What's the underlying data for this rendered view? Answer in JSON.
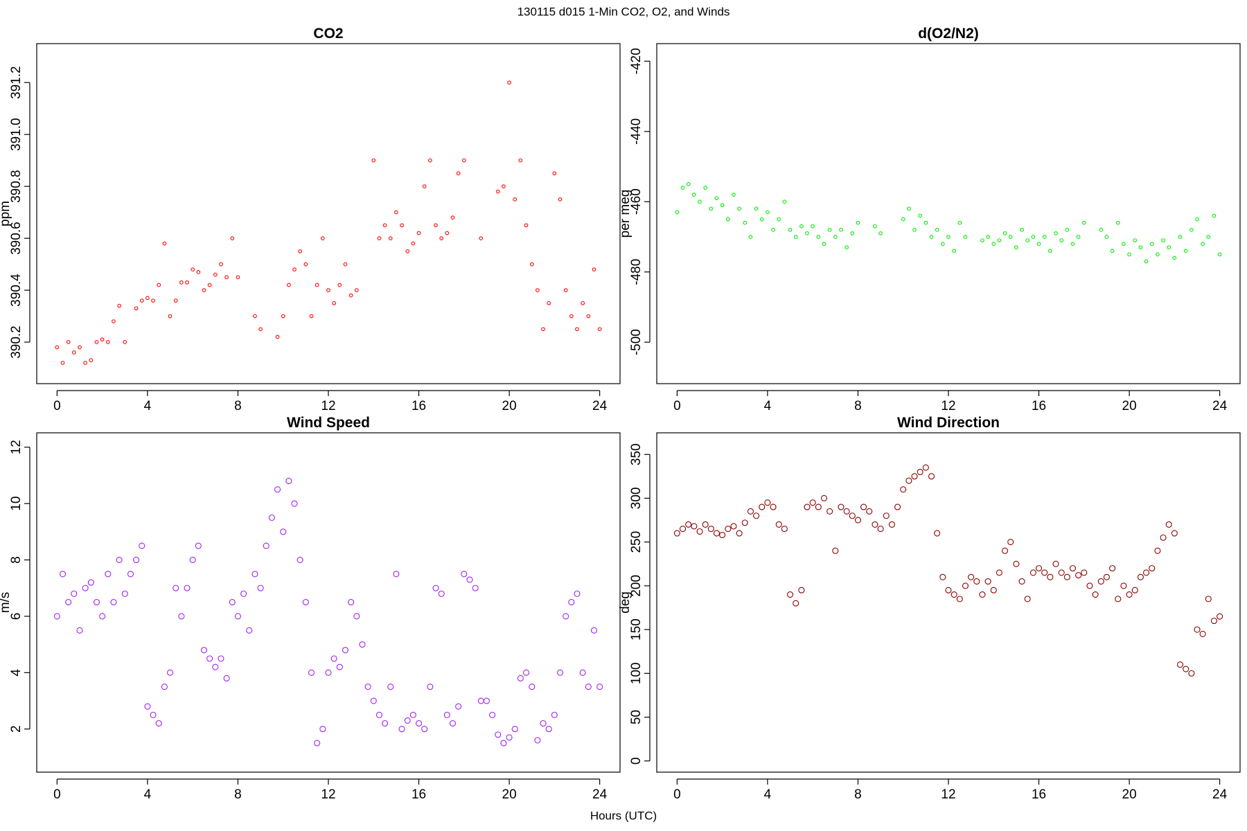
{
  "title": "130115   d015   1-Min CO2, O2, and Winds",
  "xlabel": "Hours (UTC)",
  "chart_data": [
    {
      "type": "scatter",
      "title": "CO2",
      "ylabel": "ppm",
      "color": "#ff0000",
      "xlim": [
        -0.9,
        24.9
      ],
      "xticks": [
        0,
        4,
        8,
        12,
        16,
        20,
        24
      ],
      "ylim": [
        390.04,
        391.35
      ],
      "yticks": [
        390.2,
        390.4,
        390.6,
        390.8,
        {
          "value": 391,
          "label": "391.0"
        },
        391.2
      ],
      "x": [
        0,
        0.25,
        0.5,
        0.75,
        1,
        1.25,
        1.5,
        1.75,
        2,
        2.25,
        2.5,
        2.75,
        3,
        3.25,
        3.5,
        3.75,
        4,
        4.25,
        4.5,
        4.75,
        5,
        5.25,
        5.5,
        5.75,
        6,
        6.25,
        6.5,
        6.75,
        7,
        7.25,
        7.5,
        7.75,
        8,
        8.25,
        8.5,
        8.75,
        9,
        9.25,
        9.5,
        9.75,
        10,
        10.25,
        10.5,
        10.75,
        11,
        11.25,
        11.5,
        11.75,
        12,
        12.25,
        12.5,
        12.75,
        13,
        13.25,
        13.5,
        13.75,
        14,
        14.25,
        14.5,
        14.75,
        15,
        15.25,
        15.5,
        15.75,
        16,
        16.25,
        16.5,
        16.75,
        17,
        17.25,
        17.5,
        17.75,
        18,
        18.25,
        18.5,
        18.75,
        19,
        19.25,
        19.5,
        19.75,
        20,
        20.25,
        20.5,
        20.75,
        21,
        21.25,
        21.5,
        21.75,
        22,
        22.25,
        22.5,
        22.75,
        23,
        23.25,
        23.5,
        23.75,
        24
      ],
      "values": [
        390.18,
        390.12,
        390.2,
        390.16,
        390.18,
        390.12,
        390.13,
        390.2,
        390.21,
        390.2,
        390.28,
        390.34,
        390.2,
        null,
        390.33,
        390.36,
        390.37,
        390.36,
        390.42,
        390.58,
        390.3,
        390.36,
        390.43,
        390.43,
        390.48,
        390.47,
        390.4,
        390.42,
        390.46,
        390.5,
        390.45,
        390.6,
        390.45,
        null,
        null,
        390.3,
        390.25,
        null,
        null,
        390.22,
        390.3,
        390.42,
        390.48,
        390.55,
        390.5,
        390.3,
        390.42,
        390.6,
        390.4,
        390.35,
        390.42,
        390.5,
        390.38,
        390.4,
        null,
        null,
        390.9,
        390.6,
        390.65,
        390.6,
        390.7,
        390.65,
        390.55,
        390.58,
        390.62,
        390.8,
        390.9,
        390.65,
        390.6,
        390.62,
        390.68,
        390.85,
        390.9,
        null,
        null,
        390.6,
        null,
        null,
        390.78,
        390.8,
        391.2,
        390.75,
        390.9,
        390.65,
        390.5,
        390.4,
        390.25,
        390.35,
        390.85,
        390.75,
        390.4,
        390.3,
        390.25,
        390.35,
        390.3,
        390.48,
        390.25
      ]
    },
    {
      "type": "scatter",
      "title": "d(O2/N2)",
      "ylabel": "per meg",
      "color": "#00ee00",
      "xlim": [
        -0.9,
        24.9
      ],
      "xticks": [
        0,
        4,
        8,
        12,
        16,
        20,
        24
      ],
      "ylim": [
        -511.8,
        -415
      ],
      "yticks": [
        -500,
        -480,
        -460,
        -440,
        -420
      ],
      "x": [
        0,
        0.25,
        0.5,
        0.75,
        1,
        1.25,
        1.5,
        1.75,
        2,
        2.25,
        2.5,
        2.75,
        3,
        3.25,
        3.5,
        3.75,
        4,
        4.25,
        4.5,
        4.75,
        5,
        5.25,
        5.5,
        5.75,
        6,
        6.25,
        6.5,
        6.75,
        7,
        7.25,
        7.5,
        7.75,
        8,
        8.25,
        8.5,
        8.75,
        9,
        9.25,
        9.5,
        9.75,
        10,
        10.25,
        10.5,
        10.75,
        11,
        11.25,
        11.5,
        11.75,
        12,
        12.25,
        12.5,
        12.75,
        13,
        13.25,
        13.5,
        13.75,
        14,
        14.25,
        14.5,
        14.75,
        15,
        15.25,
        15.5,
        15.75,
        16,
        16.25,
        16.5,
        16.75,
        17,
        17.25,
        17.5,
        17.75,
        18,
        18.25,
        18.5,
        18.75,
        19,
        19.25,
        19.5,
        19.75,
        20,
        20.25,
        20.5,
        20.75,
        21,
        21.25,
        21.5,
        21.75,
        22,
        22.25,
        22.5,
        22.75,
        23,
        23.25,
        23.5,
        23.75,
        24
      ],
      "values": [
        -463,
        -456,
        -455,
        -458,
        -460,
        -456,
        -462,
        -459,
        -461,
        -465,
        -458,
        -462,
        -466,
        -470,
        -462,
        -465,
        -463,
        -468,
        -465,
        -460,
        -468,
        -470,
        -467,
        -469,
        -467,
        -470,
        -472,
        -468,
        -470,
        -468,
        -473,
        -469,
        -466,
        null,
        null,
        -467,
        -469,
        null,
        null,
        null,
        -465,
        -462,
        -468,
        -464,
        -466,
        -470,
        -468,
        -472,
        -470,
        -474,
        -466,
        -470,
        null,
        null,
        -471,
        -470,
        -472,
        -471,
        -469,
        -470,
        -473,
        -468,
        -471,
        -470,
        -472,
        -470,
        -474,
        -469,
        -471,
        -468,
        -472,
        -470,
        -466,
        null,
        null,
        -468,
        -470,
        -474,
        -466,
        -472,
        -475,
        -471,
        -473,
        -477,
        -472,
        -475,
        -471,
        -473,
        -476,
        -470,
        -474,
        -468,
        -465,
        -472,
        -470,
        -464,
        -475
      ]
    },
    {
      "type": "scatter",
      "title": "Wind Speed",
      "ylabel": "m/s",
      "color": "#a020f0",
      "xlim": [
        -0.9,
        24.9
      ],
      "xticks": [
        0,
        4,
        8,
        12,
        16,
        20,
        24
      ],
      "ylim": [
        0.47,
        12.51
      ],
      "yticks": [
        2,
        4,
        6,
        8,
        10,
        12
      ],
      "x": [
        0,
        0.25,
        0.5,
        0.75,
        1,
        1.25,
        1.5,
        1.75,
        2,
        2.25,
        2.5,
        2.75,
        3,
        3.25,
        3.5,
        3.75,
        4,
        4.25,
        4.5,
        4.75,
        5,
        5.25,
        5.5,
        5.75,
        6,
        6.25,
        6.5,
        6.75,
        7,
        7.25,
        7.5,
        7.75,
        8,
        8.25,
        8.5,
        8.75,
        9,
        9.25,
        9.5,
        9.75,
        10,
        10.25,
        10.5,
        10.75,
        11,
        11.25,
        11.5,
        11.75,
        12,
        12.25,
        12.5,
        12.75,
        13,
        13.25,
        13.5,
        13.75,
        14,
        14.25,
        14.5,
        14.75,
        15,
        15.25,
        15.5,
        15.75,
        16,
        16.25,
        16.5,
        16.75,
        17,
        17.25,
        17.5,
        17.75,
        18,
        18.25,
        18.5,
        18.75,
        19,
        19.25,
        19.5,
        19.75,
        20,
        20.25,
        20.5,
        20.75,
        21,
        21.25,
        21.5,
        21.75,
        22,
        22.25,
        22.5,
        22.75,
        23,
        23.25,
        23.5,
        23.75,
        24
      ],
      "values": [
        6.0,
        7.5,
        6.5,
        6.8,
        5.5,
        7.0,
        7.2,
        6.5,
        6.0,
        7.5,
        6.5,
        8.0,
        6.8,
        7.5,
        8.0,
        8.5,
        2.8,
        2.5,
        2.2,
        3.5,
        4.0,
        7.0,
        6.0,
        7.0,
        8.0,
        8.5,
        4.8,
        4.5,
        4.2,
        4.5,
        3.8,
        6.5,
        6.0,
        6.8,
        5.5,
        7.5,
        7.0,
        8.5,
        9.5,
        10.5,
        9.0,
        10.8,
        10.0,
        8.0,
        6.5,
        4.0,
        1.5,
        2.0,
        4.0,
        4.5,
        4.2,
        4.8,
        6.5,
        6.0,
        5.0,
        3.5,
        3.0,
        2.5,
        2.2,
        3.5,
        7.5,
        2.0,
        2.3,
        2.5,
        2.2,
        2.0,
        3.5,
        7.0,
        6.8,
        2.5,
        2.2,
        2.8,
        7.5,
        7.3,
        7.0,
        3.0,
        3.0,
        2.5,
        1.8,
        1.5,
        1.7,
        2.0,
        3.8,
        4.0,
        3.5,
        1.6,
        2.2,
        2.0,
        2.5,
        4.0,
        6.0,
        6.5,
        6.8,
        4.0,
        3.5,
        5.5,
        3.5
      ]
    },
    {
      "type": "scatter",
      "title": "Wind Direction",
      "ylabel": "deg",
      "color": "#8b0000",
      "xlim": [
        -0.9,
        24.9
      ],
      "xticks": [
        0,
        4,
        8,
        12,
        16,
        20,
        24
      ],
      "ylim": [
        -12.8,
        374.7
      ],
      "yticks": [
        0,
        50,
        100,
        150,
        200,
        250,
        300,
        350
      ],
      "x": [
        0,
        0.25,
        0.5,
        0.75,
        1,
        1.25,
        1.5,
        1.75,
        2,
        2.25,
        2.5,
        2.75,
        3,
        3.25,
        3.5,
        3.75,
        4,
        4.25,
        4.5,
        4.75,
        5,
        5.25,
        5.5,
        5.75,
        6,
        6.25,
        6.5,
        6.75,
        7,
        7.25,
        7.5,
        7.75,
        8,
        8.25,
        8.5,
        8.75,
        9,
        9.25,
        9.5,
        9.75,
        10,
        10.25,
        10.5,
        10.75,
        11,
        11.25,
        11.5,
        11.75,
        12,
        12.25,
        12.5,
        12.75,
        13,
        13.25,
        13.5,
        13.75,
        14,
        14.25,
        14.5,
        14.75,
        15,
        15.25,
        15.5,
        15.75,
        16,
        16.25,
        16.5,
        16.75,
        17,
        17.25,
        17.5,
        17.75,
        18,
        18.25,
        18.5,
        18.75,
        19,
        19.25,
        19.5,
        19.75,
        20,
        20.25,
        20.5,
        20.75,
        21,
        21.25,
        21.5,
        21.75,
        22,
        22.25,
        22.5,
        22.75,
        23,
        23.25,
        23.5,
        23.75,
        24
      ],
      "values": [
        260,
        265,
        270,
        268,
        262,
        270,
        265,
        260,
        258,
        265,
        268,
        260,
        272,
        285,
        280,
        290,
        295,
        290,
        270,
        265,
        190,
        180,
        195,
        290,
        295,
        290,
        300,
        285,
        240,
        290,
        285,
        280,
        275,
        290,
        285,
        270,
        265,
        280,
        270,
        290,
        310,
        320,
        325,
        330,
        335,
        325,
        260,
        210,
        195,
        190,
        185,
        200,
        210,
        205,
        190,
        205,
        195,
        215,
        240,
        250,
        225,
        205,
        185,
        215,
        220,
        215,
        210,
        225,
        215,
        210,
        220,
        212,
        215,
        200,
        190,
        205,
        210,
        220,
        185,
        200,
        190,
        195,
        210,
        215,
        220,
        240,
        255,
        270,
        260,
        110,
        105,
        100,
        150,
        145,
        185,
        160,
        165
      ]
    }
  ]
}
